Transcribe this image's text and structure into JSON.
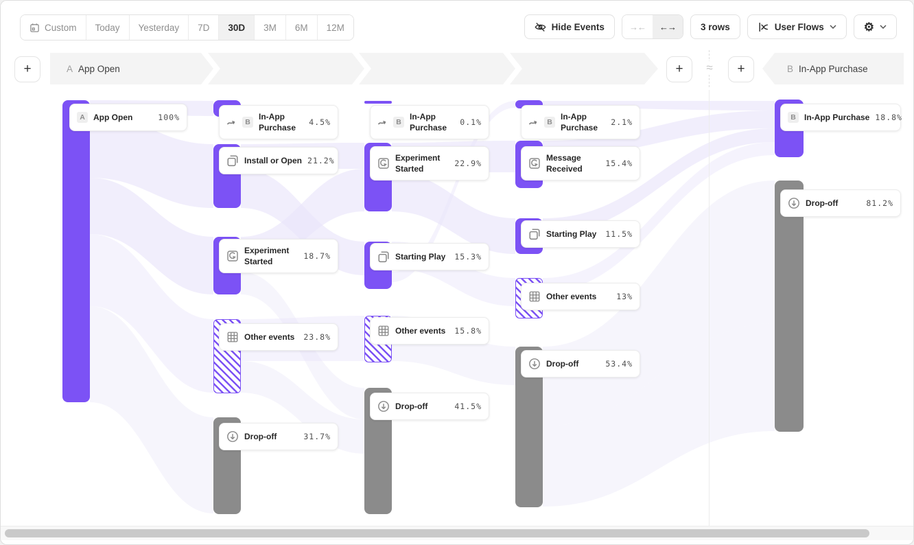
{
  "toolbar": {
    "date_ranges": [
      {
        "label": "Custom",
        "icon": "calendar-icon",
        "selected": false
      },
      {
        "label": "Today",
        "selected": false
      },
      {
        "label": "Yesterday",
        "selected": false
      },
      {
        "label": "7D",
        "selected": false
      },
      {
        "label": "30D",
        "selected": true
      },
      {
        "label": "3M",
        "selected": false
      },
      {
        "label": "6M",
        "selected": false
      },
      {
        "label": "12M",
        "selected": false
      }
    ],
    "hide_events_label": "Hide Events",
    "collapse_glyph": "→←",
    "expand_glyph": "←→",
    "rows_label": "3 rows",
    "view_label": "User Flows",
    "gear_glyph": "⚙"
  },
  "flow_header": {
    "start": {
      "badge": "A",
      "label": "App Open"
    },
    "end": {
      "badge": "B",
      "label": "In-App Purchase"
    },
    "connector": "≈",
    "add_button": "+"
  },
  "chart_data": {
    "type": "sankey",
    "unit": "percent of users per step",
    "colors": {
      "event": "#7c52f5",
      "dropoff": "#8b8b8b",
      "other_stripe": "#7c52f5",
      "ribbon": "#e8e4fa"
    },
    "columns": [
      {
        "name": "step-0",
        "nodes": [
          {
            "label": "App Open",
            "value": 100,
            "pct": "100%",
            "badge": "A",
            "kind": "event"
          }
        ]
      },
      {
        "name": "step-1",
        "nodes": [
          {
            "label": "In-App Purchase",
            "value": 4.5,
            "pct": "4.5%",
            "badge": "B",
            "icon": "trend-arrow-icon",
            "kind": "event"
          },
          {
            "label": "Install or Open",
            "value": 21.2,
            "pct": "21.2%",
            "icon": "copy-icon",
            "kind": "event"
          },
          {
            "label": "Experiment Started",
            "value": 18.7,
            "pct": "18.7%",
            "icon": "experiment-icon",
            "kind": "event"
          },
          {
            "label": "Other events",
            "value": 23.8,
            "pct": "23.8%",
            "icon": "grid-icon",
            "kind": "other"
          },
          {
            "label": "Drop-off",
            "value": 31.7,
            "pct": "31.7%",
            "icon": "dropoff-icon",
            "kind": "dropoff"
          }
        ]
      },
      {
        "name": "step-2",
        "nodes": [
          {
            "label": "In-App Purchase",
            "value": 0.1,
            "pct": "0.1%",
            "badge": "B",
            "icon": "trend-arrow-icon",
            "kind": "event"
          },
          {
            "label": "Experiment Started",
            "value": 22.9,
            "pct": "22.9%",
            "icon": "experiment-icon",
            "kind": "event"
          },
          {
            "label": "Starting Play",
            "value": 15.3,
            "pct": "15.3%",
            "icon": "copy-icon",
            "kind": "event"
          },
          {
            "label": "Other events",
            "value": 15.8,
            "pct": "15.8%",
            "icon": "grid-icon",
            "kind": "other"
          },
          {
            "label": "Drop-off",
            "value": 41.5,
            "pct": "41.5%",
            "icon": "dropoff-icon",
            "kind": "dropoff"
          }
        ]
      },
      {
        "name": "step-3",
        "nodes": [
          {
            "label": "In-App Purchase",
            "value": 2.1,
            "pct": "2.1%",
            "badge": "B",
            "icon": "trend-arrow-icon",
            "kind": "event"
          },
          {
            "label": "Message Received",
            "value": 15.4,
            "pct": "15.4%",
            "icon": "experiment-icon",
            "kind": "event"
          },
          {
            "label": "Starting Play",
            "value": 11.5,
            "pct": "11.5%",
            "icon": "copy-icon",
            "kind": "event"
          },
          {
            "label": "Other events",
            "value": 13,
            "pct": "13%",
            "icon": "grid-icon",
            "kind": "other"
          },
          {
            "label": "Drop-off",
            "value": 53.4,
            "pct": "53.4%",
            "icon": "dropoff-icon",
            "kind": "dropoff"
          }
        ]
      },
      {
        "name": "target",
        "nodes": [
          {
            "label": "In-App Purchase",
            "value": 18.8,
            "pct": "18.8%",
            "badge": "B",
            "kind": "event"
          },
          {
            "label": "Drop-off",
            "value": 81.2,
            "pct": "81.2%",
            "icon": "dropoff-icon",
            "kind": "dropoff"
          }
        ]
      }
    ]
  }
}
